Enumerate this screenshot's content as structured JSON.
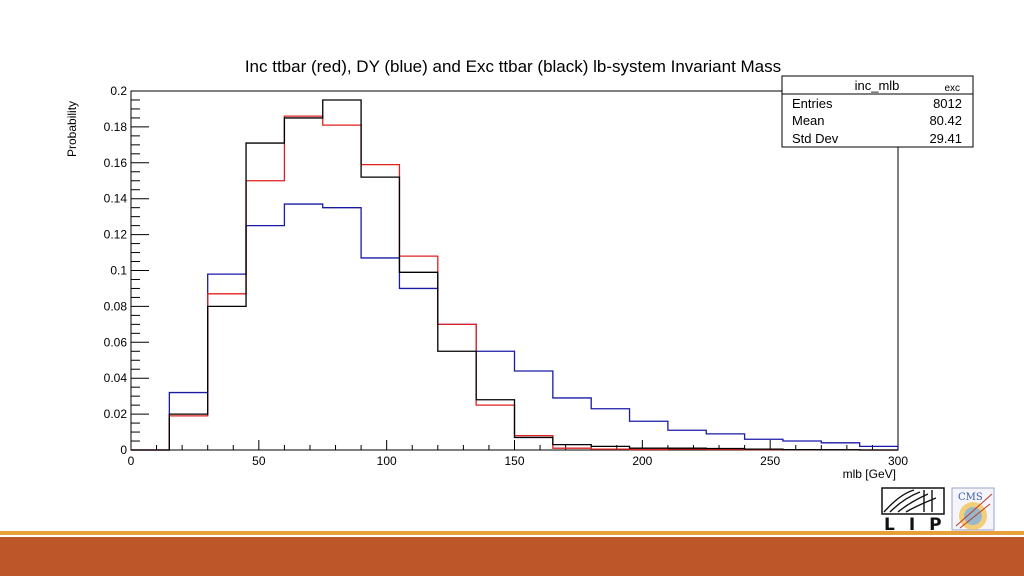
{
  "chart_data": {
    "type": "histogram",
    "title": "Inc ttbar (red), DY (blue) and Exc ttbar (black) lb-system Invariant Mass",
    "xlabel": "mlb [GeV]",
    "ylabel": "Probability",
    "xlim": [
      0,
      300
    ],
    "ylim": [
      0,
      0.2
    ],
    "x_ticks": [
      "0",
      "50",
      "100",
      "150",
      "200",
      "250",
      "300"
    ],
    "y_ticks": [
      "0",
      "0.02",
      "0.04",
      "0.06",
      "0.08",
      "0.1",
      "0.12",
      "0.14",
      "0.16",
      "0.18",
      "0.2"
    ],
    "bin_edges": [
      0,
      15,
      30,
      45,
      60,
      75,
      90,
      105,
      120,
      135,
      150,
      165,
      180,
      195,
      210,
      225,
      240,
      255,
      270,
      285,
      300
    ],
    "series": [
      {
        "color": "#1a1aa6",
        "values": [
          0,
          0.032,
          0.098,
          0.125,
          0.137,
          0.135,
          0.107,
          0.09,
          0.07,
          0.055,
          0.044,
          0.029,
          0.023,
          0.016,
          0.011,
          0.009,
          0.006,
          0.005,
          0.004,
          0.002
        ]
      },
      {
        "color": "#e02020",
        "values": [
          0,
          0.019,
          0.087,
          0.15,
          0.186,
          0.181,
          0.159,
          0.108,
          0.07,
          0.025,
          0.008,
          0.001,
          0.0005,
          0.0003,
          0.0005,
          0.0003,
          0.0002,
          0.0002,
          0.0001,
          0
        ]
      },
      {
        "color": "#000000",
        "values": [
          0,
          0.02,
          0.08,
          0.171,
          0.185,
          0.195,
          0.152,
          0.099,
          0.055,
          0.028,
          0.007,
          0.003,
          0.002,
          0.001,
          0.001,
          0.0008,
          0.0005,
          0.0002,
          0.0001,
          0
        ]
      }
    ],
    "legend_position": "top-right"
  },
  "stats_box": {
    "name": "inc_mlb",
    "tag": "exc",
    "rows": [
      {
        "label": "Entries",
        "value": "8012"
      },
      {
        "label": "Mean",
        "value": "80.42"
      },
      {
        "label": "Std Dev",
        "value": "29.41"
      }
    ]
  },
  "logos": {
    "lip_text": "LIP",
    "cms_text": "CMS"
  },
  "colors": {
    "footer_bar": "#bd5628",
    "footer_line": "#e8a03a"
  }
}
